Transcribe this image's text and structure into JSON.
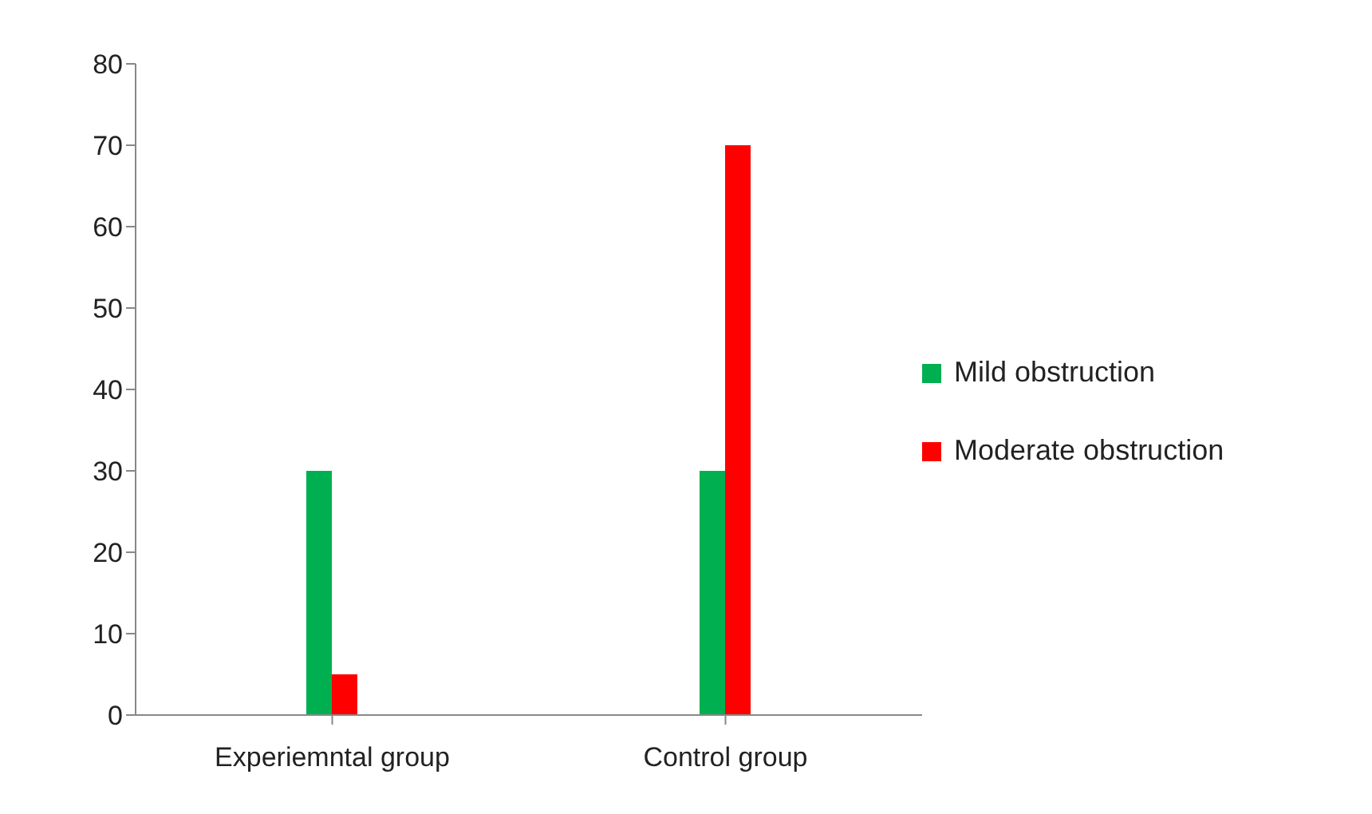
{
  "chart_data": {
    "type": "bar",
    "categories": [
      "Experiemntal group",
      "Control group"
    ],
    "series": [
      {
        "name": "Mild obstruction",
        "color": "#00b050",
        "values": [
          30,
          30
        ]
      },
      {
        "name": "Moderate obstruction",
        "color": "#ff0000",
        "values": [
          5,
          70
        ]
      }
    ],
    "ylim": [
      0,
      80
    ],
    "yticks": [
      0,
      10,
      20,
      30,
      40,
      50,
      60,
      70,
      80
    ],
    "grid": false,
    "legend": "right"
  }
}
